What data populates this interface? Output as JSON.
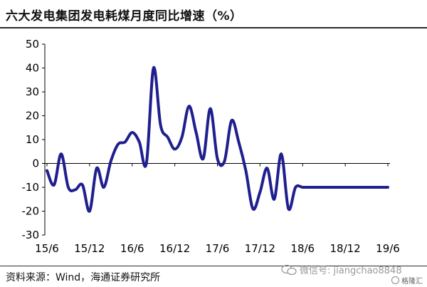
{
  "header": {
    "title": "六大发电集团发电耗煤月度同比增速（%）"
  },
  "footer": {
    "source": "资料来源：Wind，海通证券研究所",
    "watermark": "微信号: jiangchao8848",
    "brand": "格隆汇"
  },
  "icons": {
    "watermark_icon": "wechat-icon",
    "brand_icon": "gelonghui-logo-icon"
  },
  "colors": {
    "line": "#1f1f8f",
    "axis": "#000000"
  },
  "chart_data": {
    "type": "line",
    "title": "六大发电集团发电耗煤月度同比增速（%）",
    "xlabel": "",
    "ylabel": "",
    "ylim": [
      -30,
      50
    ],
    "yticks": [
      -30,
      -20,
      -10,
      0,
      10,
      20,
      30,
      40,
      50
    ],
    "xtick_labels": [
      "15/6",
      "15/12",
      "16/6",
      "16/12",
      "17/6",
      "17/12",
      "18/6",
      "18/12",
      "19/6"
    ],
    "xtick_index": [
      0,
      6,
      12,
      18,
      24,
      30,
      36,
      42,
      48
    ],
    "grid": false,
    "legend": "none",
    "x": [
      "15/6",
      "15/7",
      "15/8",
      "15/9",
      "15/10",
      "15/11",
      "15/12",
      "16/1",
      "16/2",
      "16/3",
      "16/4",
      "16/5",
      "16/6",
      "16/7",
      "16/8",
      "16/9",
      "16/10",
      "16/11",
      "16/12",
      "17/1",
      "17/2",
      "17/3",
      "17/4",
      "17/5",
      "17/6",
      "17/7",
      "17/8",
      "17/9",
      "17/10",
      "17/11",
      "17/12",
      "18/1",
      "18/2",
      "18/3",
      "18/4",
      "18/5",
      "18/6",
      "18/7",
      "18/8",
      "18/9",
      "18/10",
      "18/11",
      "18/12",
      "19/1",
      "19/2",
      "19/3",
      "19/4",
      "19/5",
      "19/6"
    ],
    "series": [
      {
        "values": [
          -3,
          -9,
          4,
          -10,
          -11,
          -9,
          -20,
          -2,
          -10,
          1,
          8,
          9,
          13,
          9,
          0,
          40,
          16,
          11,
          6,
          11,
          24,
          13,
          2,
          23,
          2,
          1,
          18,
          9,
          -3,
          -19,
          -12,
          -2,
          -15,
          4,
          -19,
          -10,
          -10,
          -10,
          -10,
          -10,
          -10,
          -10,
          -10,
          -10,
          -10,
          -10,
          -10,
          -10,
          -10
        ]
      }
    ]
  }
}
